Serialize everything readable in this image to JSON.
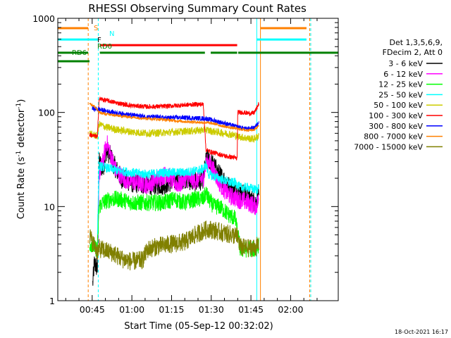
{
  "chart_data": {
    "type": "line",
    "title": "RHESSI Observing Summary Count Rates",
    "xlabel": "Start Time (05-Sep-12 00:32:02)",
    "ylabel": "Count Rate (s",
    "ylabel_sup": "-1",
    "ylabel_tail": " detector",
    "ylabel_sup2": "-1",
    "ylabel_end": ")",
    "yscale": "log",
    "ylim": [
      1,
      1000
    ],
    "xlim_minutes": [
      32.0,
      138.0
    ],
    "x_ticks": [
      {
        "m": 45,
        "label": "00:45"
      },
      {
        "m": 60,
        "label": "01:00"
      },
      {
        "m": 75,
        "label": "01:15"
      },
      {
        "m": 90,
        "label": "01:30"
      },
      {
        "m": 105,
        "label": "01:45"
      },
      {
        "m": 120,
        "label": "02:00"
      }
    ],
    "y_ticks": [
      {
        "v": 1,
        "label": "1"
      },
      {
        "v": 10,
        "label": "10"
      },
      {
        "v": 100,
        "label": "100"
      },
      {
        "v": 1000,
        "label": "1000"
      }
    ],
    "legend_header": [
      "Det 1,3,5,6,9,",
      "FDecim 2, Att 0"
    ],
    "series": [
      {
        "name": "3 - 6 keV",
        "color": "#000000",
        "noise": 0.22,
        "points": [
          [
            41,
            0
          ],
          [
            44,
            0
          ],
          [
            45.2,
            1.5
          ],
          [
            45.8,
            2.5
          ],
          [
            47,
            2.2
          ],
          [
            47.6,
            30
          ],
          [
            49,
            25
          ],
          [
            50.5,
            40
          ],
          [
            52,
            34
          ],
          [
            54,
            25
          ],
          [
            56,
            20
          ],
          [
            60,
            18
          ],
          [
            66,
            17
          ],
          [
            72,
            17
          ],
          [
            76,
            19
          ],
          [
            80,
            20
          ],
          [
            84,
            18
          ],
          [
            86,
            19
          ],
          [
            87,
            20
          ],
          [
            88,
            30
          ],
          [
            89,
            32
          ],
          [
            91,
            27
          ],
          [
            93,
            22
          ],
          [
            95,
            19
          ],
          [
            97,
            16
          ],
          [
            100,
            15
          ],
          [
            103,
            13
          ],
          [
            105,
            12
          ],
          [
            107,
            11
          ],
          [
            108,
            15
          ],
          [
            109,
            0
          ]
        ]
      },
      {
        "name": "6 - 12 keV",
        "color": "#ff00ff",
        "noise": 0.2,
        "points": [
          [
            47,
            2.2
          ],
          [
            47.6,
            22
          ],
          [
            49,
            30
          ],
          [
            50.5,
            48
          ],
          [
            52,
            35
          ],
          [
            54,
            24
          ],
          [
            56,
            21
          ],
          [
            58,
            19
          ],
          [
            62,
            18
          ],
          [
            66,
            17
          ],
          [
            70,
            20
          ],
          [
            73,
            22
          ],
          [
            76,
            18
          ],
          [
            78,
            17
          ],
          [
            80,
            20
          ],
          [
            84,
            19
          ],
          [
            87,
            20
          ],
          [
            88,
            28
          ],
          [
            89,
            30
          ],
          [
            91,
            24
          ],
          [
            93,
            18
          ],
          [
            95,
            15
          ],
          [
            97,
            13
          ],
          [
            100,
            12
          ],
          [
            104,
            11
          ],
          [
            107,
            10
          ],
          [
            108,
            12
          ]
        ]
      },
      {
        "name": "12 - 25 keV",
        "color": "#00ff00",
        "noise": 0.18,
        "points": [
          [
            43,
            0
          ],
          [
            44,
            4
          ],
          [
            45,
            4
          ],
          [
            46,
            3.6
          ],
          [
            47,
            3.6
          ],
          [
            47.6,
            10
          ],
          [
            49,
            11
          ],
          [
            52,
            12
          ],
          [
            55,
            12
          ],
          [
            60,
            11
          ],
          [
            66,
            11
          ],
          [
            72,
            11
          ],
          [
            76,
            12
          ],
          [
            80,
            11
          ],
          [
            84,
            12
          ],
          [
            87,
            12
          ],
          [
            88,
            14
          ],
          [
            89,
            12
          ],
          [
            91,
            10
          ],
          [
            93,
            10
          ],
          [
            95,
            9
          ],
          [
            97,
            8
          ],
          [
            99,
            7.5
          ],
          [
            101,
            3.5
          ],
          [
            103,
            3.5
          ],
          [
            105,
            3.6
          ],
          [
            107,
            3.5
          ],
          [
            108,
            4
          ]
        ]
      },
      {
        "name": "25 - 50 keV",
        "color": "#00ffff",
        "noise": 0.1,
        "points": [
          [
            47,
            5
          ],
          [
            47.6,
            27
          ],
          [
            50,
            26
          ],
          [
            55,
            24
          ],
          [
            60,
            23
          ],
          [
            66,
            22
          ],
          [
            72,
            23
          ],
          [
            76,
            23
          ],
          [
            80,
            23
          ],
          [
            84,
            24
          ],
          [
            87,
            25
          ],
          [
            88,
            28
          ],
          [
            89,
            22
          ],
          [
            91,
            21
          ],
          [
            93,
            20
          ],
          [
            95,
            19
          ],
          [
            97,
            18
          ],
          [
            99,
            18
          ],
          [
            101,
            16
          ],
          [
            104,
            16
          ],
          [
            107,
            15
          ],
          [
            108,
            16
          ]
        ]
      },
      {
        "name": "50 - 100 keV",
        "color": "#cccc00",
        "noise": 0.08,
        "points": [
          [
            43.5,
            0
          ],
          [
            44,
            60
          ],
          [
            45,
            58
          ],
          [
            46.5,
            57
          ],
          [
            47,
            56
          ],
          [
            47.6,
            75
          ],
          [
            50,
            70
          ],
          [
            55,
            65
          ],
          [
            60,
            62
          ],
          [
            66,
            60
          ],
          [
            72,
            61
          ],
          [
            76,
            62
          ],
          [
            80,
            63
          ],
          [
            84,
            64
          ],
          [
            87,
            65
          ],
          [
            88,
            66
          ],
          [
            89,
            64
          ],
          [
            92,
            62
          ],
          [
            95,
            60
          ],
          [
            98,
            58
          ],
          [
            101,
            55
          ],
          [
            104,
            53
          ],
          [
            106,
            52
          ],
          [
            107.5,
            55
          ],
          [
            108,
            58
          ]
        ]
      },
      {
        "name": "100 - 300 keV",
        "color": "#ff0000",
        "noise": 0.05,
        "points": [
          [
            44,
            58
          ],
          [
            46,
            56
          ],
          [
            47,
            55
          ],
          [
            47.6,
            140
          ],
          [
            50,
            135
          ],
          [
            55,
            125
          ],
          [
            60,
            118
          ],
          [
            66,
            115
          ],
          [
            72,
            116
          ],
          [
            76,
            118
          ],
          [
            80,
            120
          ],
          [
            84,
            122
          ],
          [
            87,
            122
          ],
          [
            88,
            40
          ],
          [
            90,
            38
          ],
          [
            93,
            36
          ],
          [
            96,
            34
          ],
          [
            99,
            33
          ],
          [
            99.8,
            32
          ],
          [
            100,
            100
          ],
          [
            102,
            100
          ],
          [
            104,
            98
          ],
          [
            106,
            98
          ],
          [
            107,
            108
          ],
          [
            108,
            125
          ]
        ]
      },
      {
        "name": "300 - 800 keV",
        "color": "#0000ff",
        "noise": 0.05,
        "points": [
          [
            45,
            110
          ],
          [
            47.6,
            108
          ],
          [
            50,
            104
          ],
          [
            55,
            98
          ],
          [
            60,
            94
          ],
          [
            66,
            90
          ],
          [
            72,
            88
          ],
          [
            76,
            88
          ],
          [
            80,
            88
          ],
          [
            84,
            87
          ],
          [
            88,
            86
          ],
          [
            91,
            82
          ],
          [
            94,
            78
          ],
          [
            97,
            74
          ],
          [
            100,
            70
          ],
          [
            103,
            67
          ],
          [
            106,
            68
          ],
          [
            107.5,
            75
          ],
          [
            108,
            82
          ]
        ]
      },
      {
        "name": "800 - 7000 keV",
        "color": "#ff8000",
        "noise": 0.03,
        "points": [
          [
            44,
            125
          ],
          [
            46,
            115
          ],
          [
            47.6,
            100
          ],
          [
            50,
            96
          ],
          [
            55,
            92
          ],
          [
            60,
            89
          ],
          [
            66,
            86
          ],
          [
            72,
            84
          ],
          [
            76,
            82
          ],
          [
            80,
            80
          ],
          [
            84,
            79
          ],
          [
            88,
            78
          ],
          [
            91,
            76
          ],
          [
            94,
            72
          ],
          [
            97,
            69
          ],
          [
            100,
            67
          ],
          [
            103,
            65
          ],
          [
            106,
            65
          ],
          [
            107.5,
            70
          ],
          [
            108,
            75
          ]
        ]
      },
      {
        "name": "7000 - 15000 keV",
        "color": "#808000",
        "noise": 0.2,
        "points": [
          [
            44,
            5
          ],
          [
            45,
            4.2
          ],
          [
            46,
            3.8
          ],
          [
            47,
            3.3
          ],
          [
            47.6,
            3.6
          ],
          [
            50,
            3.4
          ],
          [
            53,
            3.2
          ],
          [
            56,
            2.8
          ],
          [
            60,
            2.6
          ],
          [
            64,
            2.7
          ],
          [
            66,
            3.5
          ],
          [
            70,
            3.8
          ],
          [
            75,
            4.0
          ],
          [
            80,
            4.2
          ],
          [
            84,
            5.0
          ],
          [
            87,
            5.5
          ],
          [
            89,
            5.8
          ],
          [
            92,
            5.5
          ],
          [
            95,
            5.2
          ],
          [
            98,
            5.0
          ],
          [
            100,
            4.8
          ],
          [
            101,
            3.7
          ],
          [
            104,
            3.6
          ],
          [
            107,
            3.7
          ],
          [
            108,
            4
          ]
        ]
      }
    ],
    "flags": [
      {
        "name": "S",
        "color": "#ff8000",
        "y": 0.965,
        "segments": [
          [
            32,
            43.5
          ],
          [
            108.6,
            126
          ]
        ]
      },
      {
        "name": "N",
        "color": "#00ffff",
        "y": 0.925,
        "segments": [
          [
            32,
            47.3
          ],
          [
            107.2,
            126
          ]
        ]
      },
      {
        "name": "F",
        "color": "#ff0000",
        "y": 0.905,
        "segments": [
          [
            47.9,
            99.8
          ]
        ]
      },
      {
        "name": "RD0",
        "color": "#008000",
        "y": 0.878,
        "segments": [
          [
            47.9,
            87.6
          ],
          [
            89.8,
            99.8
          ],
          [
            100.2,
            138
          ]
        ]
      },
      {
        "name": "RD6",
        "color": "#008000",
        "y": 0.848,
        "segments": [
          [
            32,
            44
          ]
        ]
      },
      {
        "name": "RD0",
        "color": "#008000",
        "y": 0.878,
        "segments": [
          [
            32,
            43.5
          ]
        ]
      }
    ],
    "flag_labels": [
      {
        "text": "S",
        "color": "#ff8000"
      },
      {
        "text": "N",
        "color": "#00ffff"
      },
      {
        "text": "F",
        "color": "#000000"
      },
      {
        "text": "RD0",
        "color": "#008000"
      },
      {
        "text": "RD6",
        "color": "#008000"
      }
    ],
    "vlines": [
      {
        "m": 43.5,
        "color": "#ff8000",
        "dash": true
      },
      {
        "m": 47.3,
        "color": "#00ffff",
        "dash": true
      },
      {
        "m": 107.2,
        "color": "#00ffff",
        "dash": false
      },
      {
        "m": 108.6,
        "color": "#ff8000",
        "dash": false
      },
      {
        "m": 127.2,
        "color": "#ff8000",
        "dash": true
      },
      {
        "m": 127.6,
        "color": "#00ffff",
        "dash": true
      }
    ]
  },
  "timestamp": "18-Oct-2021 16:17"
}
